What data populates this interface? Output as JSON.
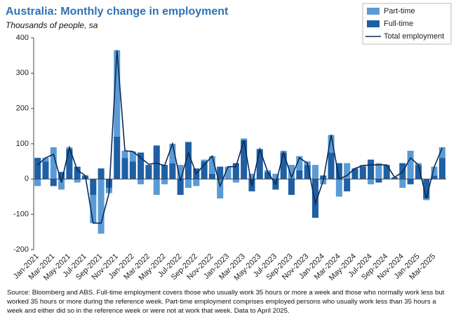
{
  "chart_data": {
    "type": "bar",
    "title": "Australia: Monthly change in employment",
    "subtitle": "Thousands of people, sa",
    "note": "Source: Bloomberg and ABS.  Full-time employment covers those who usually work 35 hours or more a week and those who normally work less but worked 35 hours or  more during the reference week.  Part-time employment comprises employed persons who usually work less than 35 hours a week and either did so in the reference week or were not at work that week.  Data to April 2025.",
    "categories": [
      "Jan-2021",
      null,
      "Mar-2021",
      null,
      "May-2021",
      null,
      "Jul-2021",
      null,
      "Sep-2021",
      null,
      "Nov-2021",
      null,
      "Jan-2022",
      null,
      "Mar-2022",
      null,
      "May-2022",
      null,
      "Jul-2022",
      null,
      "Sep-2022",
      null,
      "Nov-2022",
      null,
      "Jan-2023",
      null,
      "Mar-2023",
      null,
      "May-2023",
      null,
      "Jul-2023",
      null,
      "Sep-2023",
      null,
      "Nov-2023",
      null,
      "Jan-2024",
      null,
      "Mar-2024",
      null,
      "May-2024",
      null,
      "Jul-2024",
      null,
      "Sep-2024",
      null,
      "Nov-2024",
      null,
      "Jan-2025",
      null,
      "Mar-2025",
      null
    ],
    "series": [
      {
        "name": "Part-time",
        "type": "bar",
        "color": "#5b9bd5",
        "values": [
          -20,
          10,
          90,
          -30,
          5,
          -10,
          0,
          -80,
          -155,
          -15,
          245,
          20,
          28,
          -15,
          0,
          -45,
          -15,
          55,
          40,
          -25,
          -20,
          5,
          50,
          -55,
          35,
          -10,
          5,
          15,
          0,
          5,
          15,
          5,
          40,
          40,
          10,
          40,
          -15,
          50,
          -50,
          45,
          0,
          5,
          -15,
          45,
          0,
          0,
          -25,
          80,
          5,
          -5,
          25,
          30
        ]
      },
      {
        "name": "Full-time",
        "type": "bar",
        "color": "#1f5fa3",
        "values": [
          60,
          50,
          -20,
          20,
          85,
          35,
          10,
          -45,
          30,
          -25,
          120,
          60,
          50,
          75,
          40,
          95,
          40,
          45,
          -45,
          105,
          30,
          50,
          15,
          35,
          0,
          45,
          110,
          -35,
          85,
          20,
          -30,
          75,
          -45,
          25,
          40,
          -110,
          10,
          75,
          45,
          -35,
          30,
          35,
          55,
          -10,
          40,
          5,
          45,
          -15,
          40,
          -55,
          10,
          60
        ]
      },
      {
        "name": "Total employment",
        "type": "line",
        "color": "#0b2a55",
        "values": [
          40,
          60,
          70,
          -10,
          90,
          25,
          10,
          -125,
          -125,
          -40,
          365,
          80,
          78,
          60,
          42,
          45,
          38,
          100,
          -5,
          75,
          15,
          40,
          65,
          -20,
          35,
          35,
          110,
          -20,
          85,
          20,
          -15,
          75,
          5,
          60,
          45,
          -70,
          -5,
          125,
          0,
          10,
          30,
          38,
          40,
          40,
          40,
          5,
          20,
          60,
          40,
          -55,
          35,
          88
        ]
      }
    ],
    "ylim": [
      -200,
      400
    ],
    "yticks": [
      -200,
      -100,
      0,
      100,
      200,
      300,
      400
    ],
    "grid": false,
    "legend": "top-right"
  }
}
